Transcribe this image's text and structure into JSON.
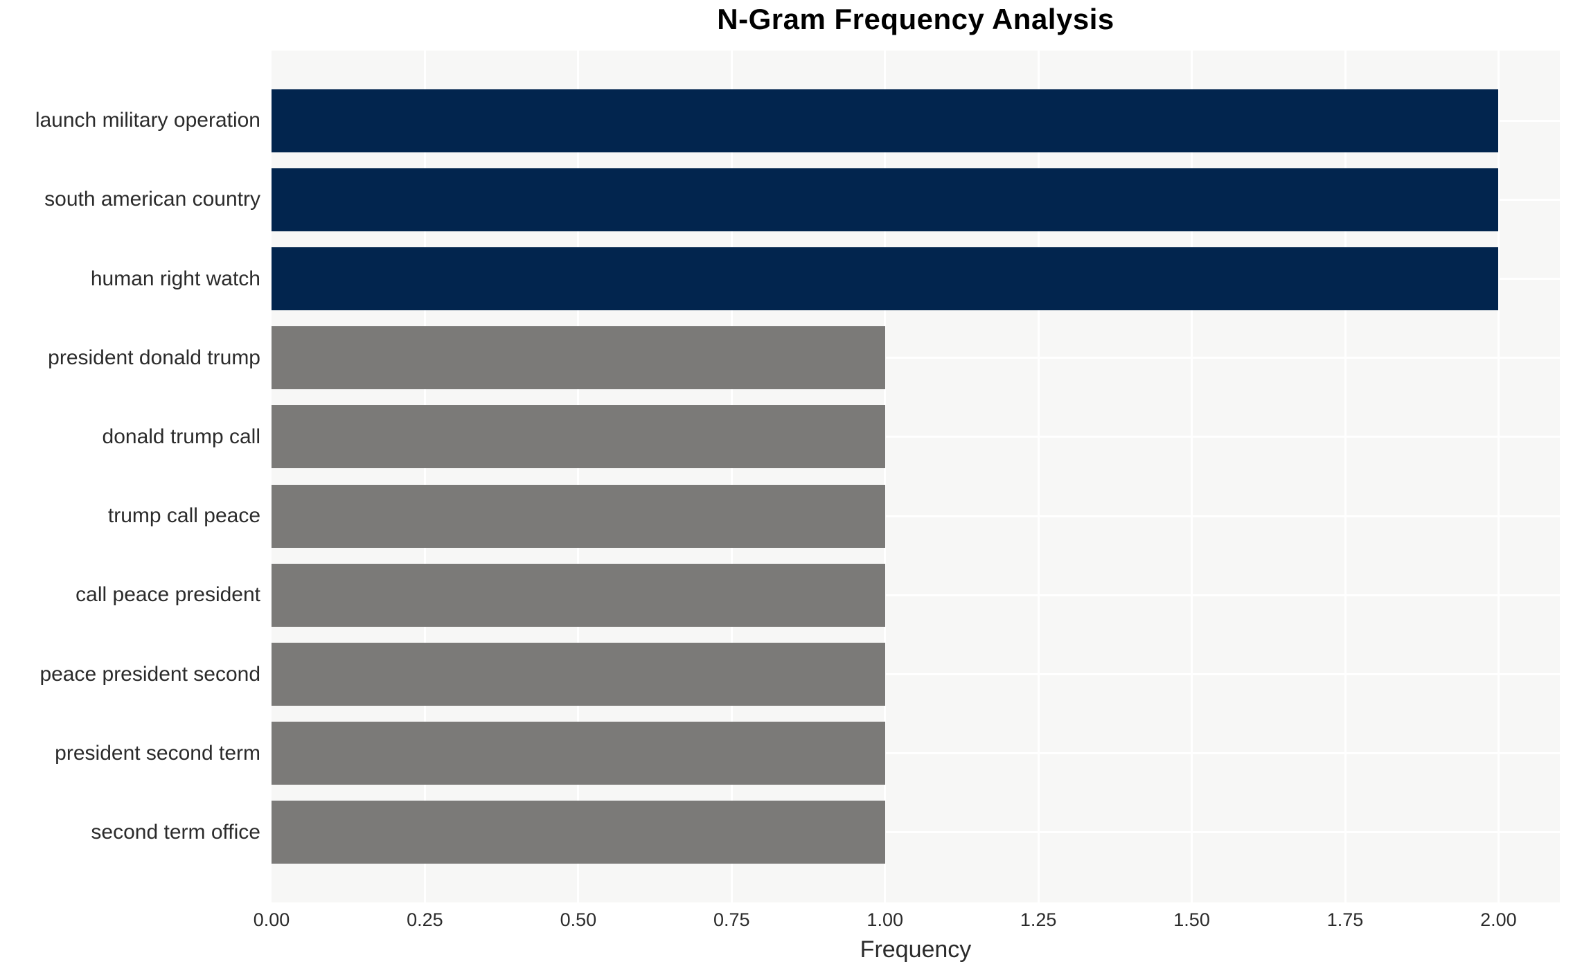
{
  "chart_data": {
    "type": "bar",
    "orientation": "horizontal",
    "title": "N-Gram Frequency Analysis",
    "xlabel": "Frequency",
    "ylabel": "",
    "categories": [
      "launch military operation",
      "south american country",
      "human right watch",
      "president donald trump",
      "donald trump call",
      "trump call peace",
      "call peace president",
      "peace president second",
      "president second term",
      "second term office"
    ],
    "values": [
      2,
      2,
      2,
      1,
      1,
      1,
      1,
      1,
      1,
      1
    ],
    "bar_colors": [
      "#02254e",
      "#02254e",
      "#02254e",
      "#7b7a78",
      "#7b7a78",
      "#7b7a78",
      "#7b7a78",
      "#7b7a78",
      "#7b7a78",
      "#7b7a78"
    ],
    "xlim": [
      0,
      2.1
    ],
    "xticks": [
      0,
      0.25,
      0.5,
      0.75,
      1.0,
      1.25,
      1.5,
      1.75,
      2.0
    ],
    "xtick_labels": [
      "0.00",
      "0.25",
      "0.50",
      "0.75",
      "1.00",
      "1.25",
      "1.50",
      "1.75",
      "2.00"
    ],
    "grid": true,
    "legend": false,
    "colors": {
      "highlight_navy": "#02254e",
      "default_gray": "#7b7a78",
      "plot_background": "#f7f7f6",
      "gridline": "#ffffff",
      "text": "#2b2b2b",
      "title_text": "#000000"
    }
  }
}
